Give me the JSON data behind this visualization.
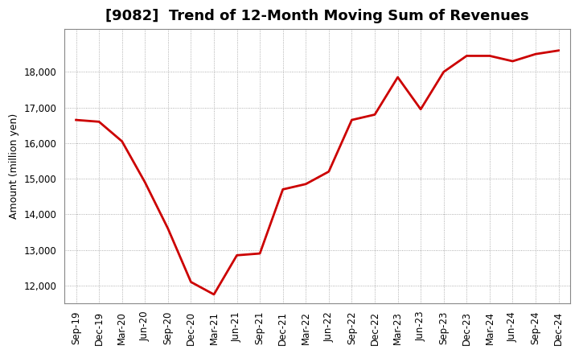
{
  "title": "[9082]  Trend of 12-Month Moving Sum of Revenues",
  "ylabel": "Amount (million yen)",
  "line_color": "#cc0000",
  "background_color": "#ffffff",
  "grid_color": "#999999",
  "x_labels": [
    "Sep-19",
    "Dec-19",
    "Mar-20",
    "Jun-20",
    "Sep-20",
    "Dec-20",
    "Mar-21",
    "Jun-21",
    "Sep-21",
    "Dec-21",
    "Mar-22",
    "Jun-22",
    "Sep-22",
    "Dec-22",
    "Mar-23",
    "Jun-23",
    "Sep-23",
    "Dec-23",
    "Mar-24",
    "Jun-24",
    "Sep-24",
    "Dec-24"
  ],
  "y_values": [
    16650,
    16600,
    16050,
    14900,
    13600,
    12100,
    11750,
    12850,
    12900,
    14700,
    14850,
    15200,
    16650,
    16800,
    17850,
    16950,
    18000,
    18450,
    18450,
    18300,
    18500,
    18600
  ],
  "ylim_min": 11500,
  "ylim_max": 19200,
  "yticks": [
    12000,
    13000,
    14000,
    15000,
    16000,
    17000,
    18000
  ],
  "title_fontsize": 13,
  "ylabel_fontsize": 9,
  "tick_fontsize": 8.5
}
